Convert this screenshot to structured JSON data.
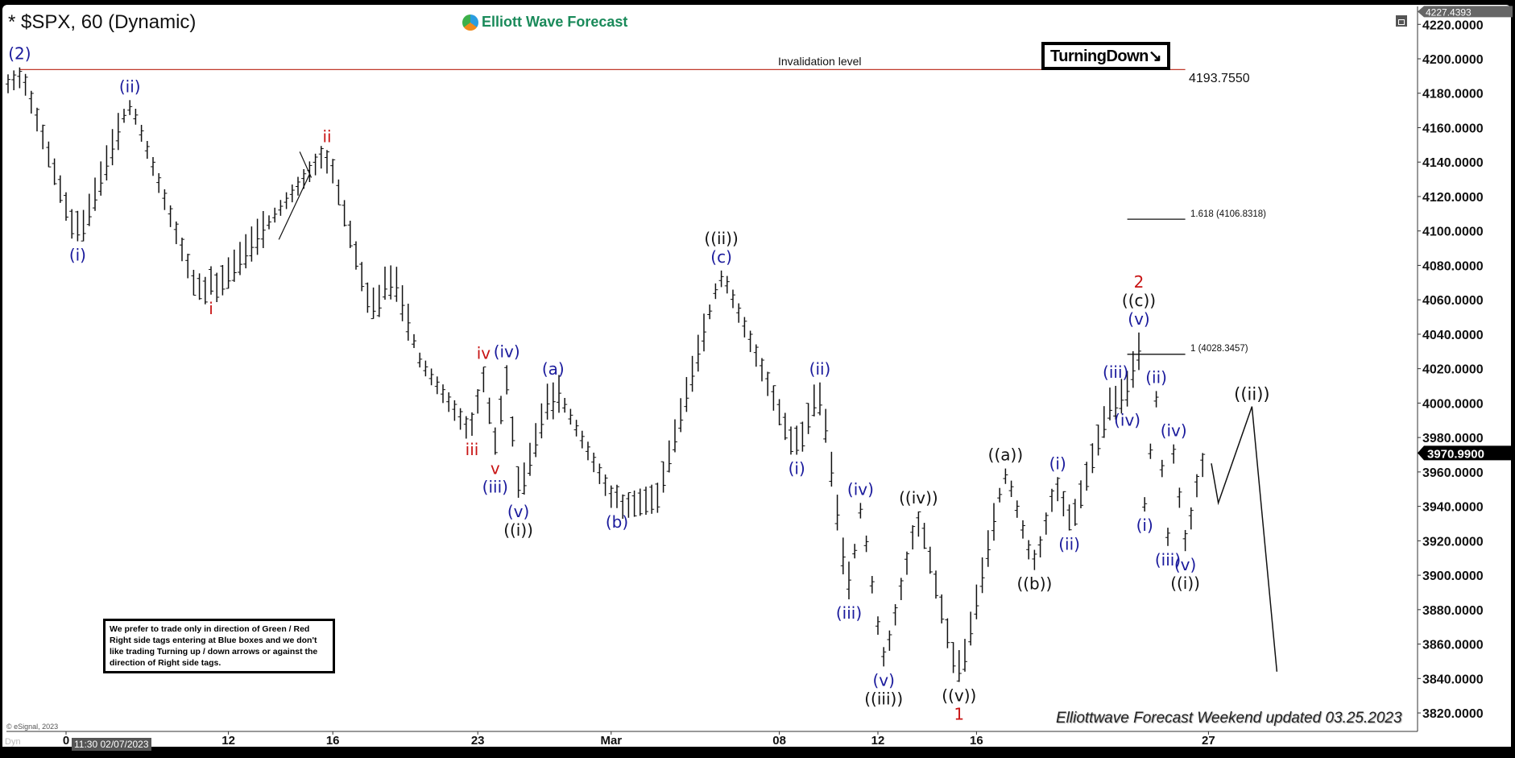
{
  "header": {
    "title": "* $SPX, 60 (Dynamic)",
    "brand": "Elliott Wave Forecast"
  },
  "tags": {
    "turning": "TurningDown",
    "turning_icon": "arrow-down-right-icon"
  },
  "annotations": {
    "invalidation_label": "Invalidation level",
    "invalidation_value": "4193.7550",
    "fib_1618": "1.618 (4106.8318)",
    "fib_1": "1 (4028.3457)",
    "note": "We prefer to trade only in direction of Green / Red Right side tags entering at Blue boxes and we don't like trading Turning up / down arrows or against the direction of Right side tags.",
    "updated": "Elliottwave Forecast Weekend updated 03.25.2023",
    "copyright": "© eSignal, 2023",
    "dyn": "Dyn",
    "cursor_date": "11:30 02/07/2023",
    "top_price_tag": "4227.4393",
    "last_price_tag": "3970.9900"
  },
  "colors": {
    "blue": "#1a1a9c",
    "red": "#c81414",
    "black": "#111111",
    "invalidation": "#c0392b"
  },
  "chart_data": {
    "type": "ohlc",
    "interval": "60 min",
    "ylim": [
      3810,
      4228
    ],
    "yticks": [
      3820,
      3840,
      3860,
      3880,
      3900,
      3920,
      3940,
      3960,
      3980,
      4000,
      4020,
      4040,
      4060,
      4080,
      4100,
      4120,
      4140,
      4160,
      4180,
      4200,
      4220
    ],
    "xticks": [
      {
        "label": "0",
        "bar": 10
      },
      {
        "label": "12",
        "bar": 38
      },
      {
        "label": "16",
        "bar": 56
      },
      {
        "label": "23",
        "bar": 81
      },
      {
        "label": "Mar",
        "bar": 104
      },
      {
        "label": "08",
        "bar": 133
      },
      {
        "label": "12",
        "bar": 150
      },
      {
        "label": "16",
        "bar": 167
      },
      {
        "label": "27",
        "bar": 207
      }
    ],
    "invalidation_level": 4193.755,
    "fib_levels": [
      {
        "ratio": "1.618",
        "price": 4106.8318
      },
      {
        "ratio": "1",
        "price": 4028.3457
      }
    ],
    "last_price": 3970.99,
    "pivots": [
      {
        "bar": 0,
        "price": 4180
      },
      {
        "bar": 2,
        "price": 4195,
        "side": "above",
        "labels": [
          {
            "t": "(2)",
            "c": "blue"
          }
        ]
      },
      {
        "bar": 12,
        "price": 4094,
        "side": "below",
        "labels": [
          {
            "t": "(i)",
            "c": "blue"
          }
        ]
      },
      {
        "bar": 21,
        "price": 4176,
        "side": "above",
        "labels": [
          {
            "t": "(ii)",
            "c": "blue"
          }
        ]
      },
      {
        "bar": 32,
        "price": 4070
      },
      {
        "bar": 35,
        "price": 4063,
        "side": "below",
        "labels": [
          {
            "t": "i",
            "c": "red"
          }
        ]
      },
      {
        "bar": 55,
        "price": 4147,
        "side": "above",
        "labels": [
          {
            "t": "ii",
            "c": "red"
          }
        ]
      },
      {
        "bar": 63,
        "price": 4049
      },
      {
        "bar": 66,
        "price": 4080
      },
      {
        "bar": 71,
        "price": 4025
      },
      {
        "bar": 80,
        "price": 3981,
        "side": "below",
        "labels": [
          {
            "t": "iii",
            "c": "red"
          }
        ]
      },
      {
        "bar": 82,
        "price": 4021,
        "side": "above",
        "labels": [
          {
            "t": "iv",
            "c": "red"
          }
        ]
      },
      {
        "bar": 84,
        "price": 3970,
        "side": "below",
        "labels": [
          {
            "t": "v",
            "c": "red"
          },
          {
            "t": "(iii)",
            "c": "blue"
          }
        ]
      },
      {
        "bar": 86,
        "price": 4022,
        "side": "above",
        "labels": [
          {
            "t": "(iv)",
            "c": "blue"
          }
        ]
      },
      {
        "bar": 88,
        "price": 3945,
        "side": "below",
        "labels": [
          {
            "t": "(v)",
            "c": "blue"
          },
          {
            "t": "((i))",
            "c": "black"
          }
        ]
      },
      {
        "bar": 94,
        "price": 4012,
        "side": "above",
        "labels": [
          {
            "t": "(a)",
            "c": "blue"
          }
        ]
      },
      {
        "bar": 105,
        "price": 3939,
        "side": "below",
        "labels": [
          {
            "t": "(b)",
            "c": "blue"
          }
        ]
      },
      {
        "bar": 112,
        "price": 3945
      },
      {
        "bar": 123,
        "price": 4077,
        "side": "above",
        "labels": [
          {
            "t": "(c)",
            "c": "blue"
          },
          {
            "t": "((ii))",
            "c": "black"
          }
        ]
      },
      {
        "bar": 136,
        "price": 3970,
        "side": "below",
        "labels": [
          {
            "t": "(i)",
            "c": "blue"
          }
        ]
      },
      {
        "bar": 140,
        "price": 4012,
        "side": "above",
        "labels": [
          {
            "t": "(ii)",
            "c": "blue"
          }
        ]
      },
      {
        "bar": 145,
        "price": 3886,
        "side": "below",
        "labels": [
          {
            "t": "(iii)",
            "c": "blue"
          }
        ]
      },
      {
        "bar": 147,
        "price": 3942,
        "side": "above",
        "labels": [
          {
            "t": "(iv)",
            "c": "blue"
          }
        ]
      },
      {
        "bar": 151,
        "price": 3847,
        "side": "below",
        "labels": [
          {
            "t": "(v)",
            "c": "blue"
          },
          {
            "t": "((iii))",
            "c": "black"
          }
        ]
      },
      {
        "bar": 157,
        "price": 3937,
        "side": "above",
        "labels": [
          {
            "t": "((iv))",
            "c": "black"
          }
        ]
      },
      {
        "bar": 164,
        "price": 3838,
        "side": "below",
        "labels": [
          {
            "t": "((v))",
            "c": "black"
          },
          {
            "t": "1",
            "c": "red"
          }
        ]
      },
      {
        "bar": 172,
        "price": 3962,
        "side": "above",
        "labels": [
          {
            "t": "((a))",
            "c": "black"
          }
        ]
      },
      {
        "bar": 177,
        "price": 3903,
        "side": "below",
        "labels": [
          {
            "t": "((b))",
            "c": "black"
          }
        ]
      },
      {
        "bar": 181,
        "price": 3957,
        "side": "above",
        "labels": [
          {
            "t": "(i)",
            "c": "blue"
          }
        ]
      },
      {
        "bar": 183,
        "price": 3926,
        "side": "below",
        "labels": [
          {
            "t": "(ii)",
            "c": "blue"
          }
        ]
      },
      {
        "bar": 191,
        "price": 4010,
        "side": "above",
        "labels": [
          {
            "t": "(iii)",
            "c": "blue"
          }
        ]
      },
      {
        "bar": 193,
        "price": 3998,
        "side": "below",
        "labels": [
          {
            "t": "(iv)",
            "c": "blue"
          }
        ]
      },
      {
        "bar": 195,
        "price": 4041,
        "side": "above",
        "labels": [
          {
            "t": "(v)",
            "c": "blue"
          },
          {
            "t": "((c))",
            "c": "black"
          },
          {
            "t": "2",
            "c": "red"
          }
        ]
      },
      {
        "bar": 196,
        "price": 3937,
        "side": "below",
        "labels": [
          {
            "t": "(i)",
            "c": "blue"
          }
        ]
      },
      {
        "bar": 198,
        "price": 4007,
        "side": "above",
        "labels": [
          {
            "t": "(ii)",
            "c": "blue"
          }
        ]
      },
      {
        "bar": 200,
        "price": 3917,
        "side": "below",
        "labels": [
          {
            "t": "(iii)",
            "c": "blue"
          }
        ]
      },
      {
        "bar": 201,
        "price": 3976,
        "side": "above",
        "labels": [
          {
            "t": "(iv)",
            "c": "blue"
          }
        ]
      },
      {
        "bar": 203,
        "price": 3914,
        "side": "below",
        "labels": [
          {
            "t": "(v)",
            "c": "blue"
          },
          {
            "t": "((i))",
            "c": "black"
          }
        ]
      },
      {
        "bar": 206,
        "price": 3971
      }
    ],
    "projection": [
      {
        "bar": 207.5,
        "price": 3965
      },
      {
        "bar": 208.7,
        "price": 3942
      },
      {
        "bar": 214.5,
        "price": 3998,
        "label": "((ii))"
      },
      {
        "bar": 218.8,
        "price": 3844
      }
    ],
    "drawn_lines": [
      {
        "from": {
          "bar": 46.7,
          "price": 4095
        },
        "to": {
          "bar": 52,
          "price": 4133
        }
      },
      {
        "from": {
          "bar": 50.3,
          "price": 4146
        },
        "to": {
          "bar": 52.3,
          "price": 4131
        }
      }
    ]
  }
}
